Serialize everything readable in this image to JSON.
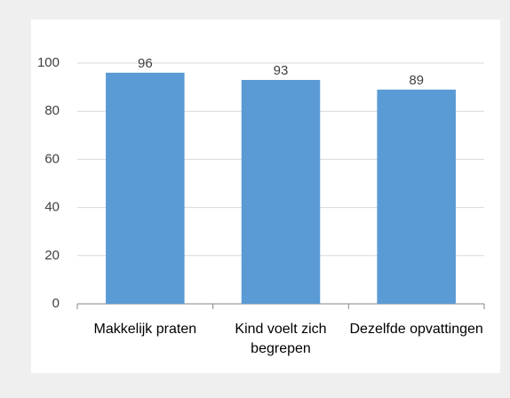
{
  "chart_data": {
    "type": "bar",
    "categories": [
      "Makkelijk praten",
      "Kind voelt zich begrepen",
      "Dezelfde opvattingen"
    ],
    "values": [
      96,
      93,
      89
    ],
    "color": "#5b9bd5",
    "ylim": [
      0,
      100
    ],
    "yticks": [
      0,
      20,
      40,
      60,
      80,
      100
    ],
    "grid": true
  }
}
